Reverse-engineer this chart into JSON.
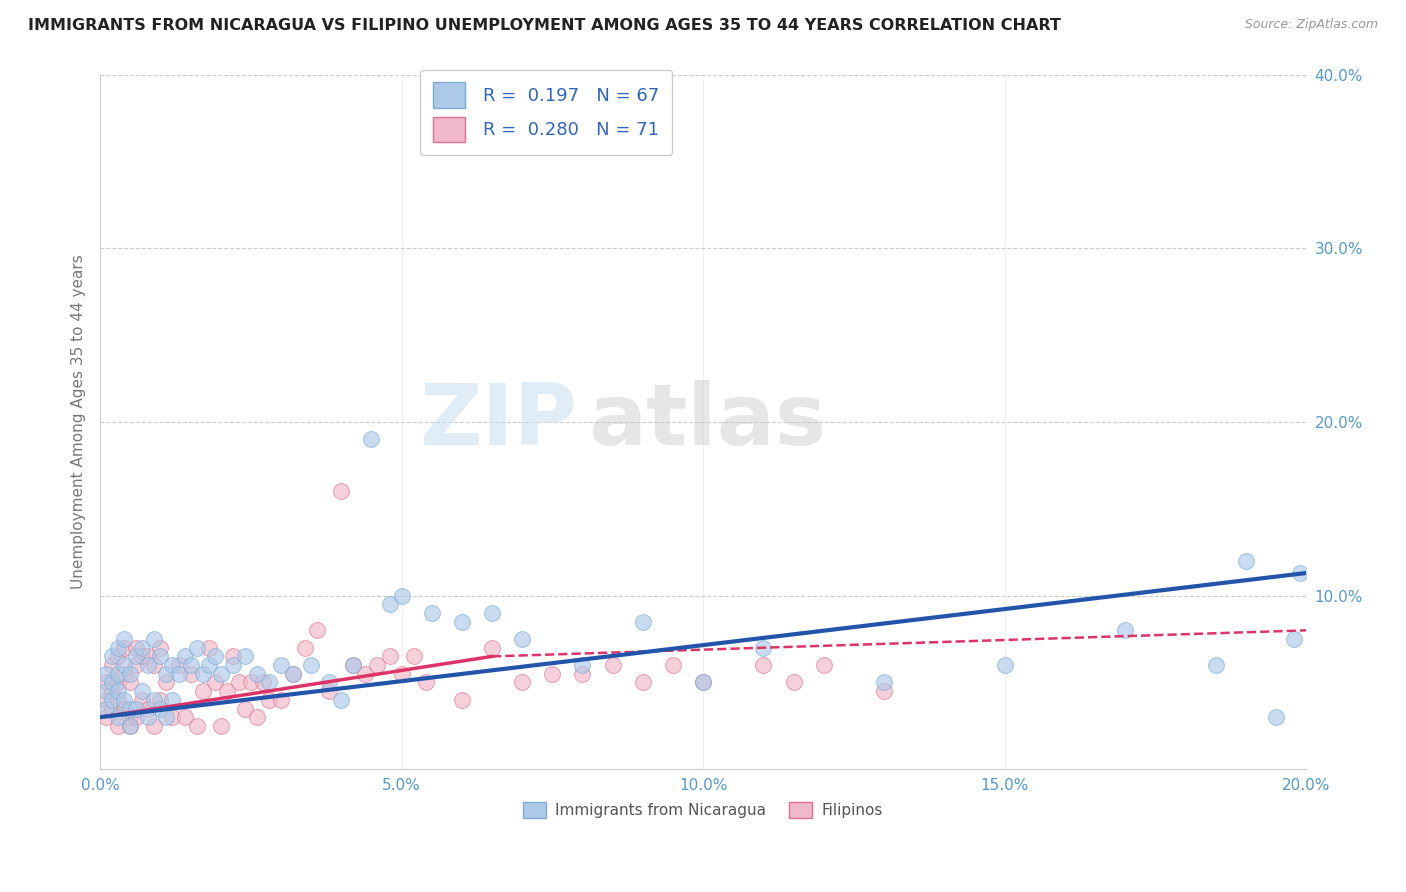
{
  "title": "IMMIGRANTS FROM NICARAGUA VS FILIPINO UNEMPLOYMENT AMONG AGES 35 TO 44 YEARS CORRELATION CHART",
  "source": "Source: ZipAtlas.com",
  "ylabel": "Unemployment Among Ages 35 to 44 years",
  "xlim": [
    0.0,
    0.2
  ],
  "ylim": [
    0.0,
    0.4
  ],
  "xticks": [
    0.0,
    0.05,
    0.1,
    0.15,
    0.2
  ],
  "yticks": [
    0.0,
    0.1,
    0.2,
    0.3,
    0.4
  ],
  "xtick_labels": [
    "0.0%",
    "5.0%",
    "10.0%",
    "15.0%",
    "20.0%"
  ],
  "ytick_labels": [
    "",
    "10.0%",
    "20.0%",
    "30.0%",
    "40.0%"
  ],
  "watermark_zip": "ZIP",
  "watermark_atlas": "atlas",
  "watermark_color_zip": "#c8ddf0",
  "watermark_color_atlas": "#c8c8c8",
  "series": [
    {
      "name": "Immigrants from Nicaragua",
      "R": 0.197,
      "N": 67,
      "color": "#adc9e8",
      "edge_color": "#7aaad4",
      "line_color": "#2255aa",
      "line_x_start": 0.0,
      "line_x_end": 0.2,
      "line_y_start": 0.03,
      "line_y_end": 0.113,
      "line_dashed_from": 0.2,
      "x": [
        0.001,
        0.001,
        0.001,
        0.002,
        0.002,
        0.002,
        0.003,
        0.003,
        0.003,
        0.003,
        0.004,
        0.004,
        0.004,
        0.005,
        0.005,
        0.005,
        0.006,
        0.006,
        0.007,
        0.007,
        0.008,
        0.008,
        0.009,
        0.009,
        0.01,
        0.01,
        0.011,
        0.011,
        0.012,
        0.012,
        0.013,
        0.014,
        0.015,
        0.016,
        0.017,
        0.018,
        0.019,
        0.02,
        0.022,
        0.024,
        0.026,
        0.028,
        0.03,
        0.032,
        0.035,
        0.038,
        0.04,
        0.042,
        0.045,
        0.048,
        0.05,
        0.055,
        0.06,
        0.065,
        0.07,
        0.08,
        0.09,
        0.1,
        0.11,
        0.13,
        0.15,
        0.17,
        0.185,
        0.19,
        0.195,
        0.198,
        0.199
      ],
      "y": [
        0.045,
        0.055,
        0.035,
        0.05,
        0.04,
        0.065,
        0.055,
        0.03,
        0.07,
        0.045,
        0.06,
        0.04,
        0.075,
        0.035,
        0.055,
        0.025,
        0.065,
        0.035,
        0.07,
        0.045,
        0.06,
        0.03,
        0.075,
        0.04,
        0.065,
        0.035,
        0.055,
        0.03,
        0.06,
        0.04,
        0.055,
        0.065,
        0.06,
        0.07,
        0.055,
        0.06,
        0.065,
        0.055,
        0.06,
        0.065,
        0.055,
        0.05,
        0.06,
        0.055,
        0.06,
        0.05,
        0.04,
        0.06,
        0.19,
        0.095,
        0.1,
        0.09,
        0.085,
        0.09,
        0.075,
        0.06,
        0.085,
        0.05,
        0.07,
        0.05,
        0.06,
        0.08,
        0.06,
        0.12,
        0.03,
        0.075,
        0.113
      ]
    },
    {
      "name": "Filipinos",
      "R": 0.28,
      "N": 71,
      "color": "#f0b8c8",
      "edge_color": "#e07090",
      "line_color": "#dd3366",
      "line_x_start": 0.0,
      "line_x_end": 0.065,
      "line_y_start": 0.03,
      "line_y_end": 0.065,
      "line_dashed_from": 0.065,
      "line_dashed_to": 0.2,
      "line_dashed_y_end": 0.08,
      "x": [
        0.001,
        0.001,
        0.001,
        0.002,
        0.002,
        0.002,
        0.003,
        0.003,
        0.003,
        0.003,
        0.004,
        0.004,
        0.004,
        0.005,
        0.005,
        0.005,
        0.006,
        0.006,
        0.006,
        0.007,
        0.007,
        0.008,
        0.008,
        0.009,
        0.009,
        0.01,
        0.01,
        0.011,
        0.012,
        0.013,
        0.014,
        0.015,
        0.016,
        0.017,
        0.018,
        0.019,
        0.02,
        0.021,
        0.022,
        0.023,
        0.024,
        0.025,
        0.026,
        0.027,
        0.028,
        0.03,
        0.032,
        0.034,
        0.036,
        0.038,
        0.04,
        0.042,
        0.044,
        0.046,
        0.048,
        0.05,
        0.052,
        0.054,
        0.06,
        0.065,
        0.07,
        0.075,
        0.08,
        0.085,
        0.09,
        0.095,
        0.1,
        0.11,
        0.115,
        0.12,
        0.13
      ],
      "y": [
        0.04,
        0.05,
        0.03,
        0.045,
        0.035,
        0.06,
        0.05,
        0.025,
        0.065,
        0.04,
        0.055,
        0.035,
        0.07,
        0.03,
        0.05,
        0.025,
        0.06,
        0.03,
        0.07,
        0.065,
        0.04,
        0.065,
        0.035,
        0.06,
        0.025,
        0.07,
        0.04,
        0.05,
        0.03,
        0.06,
        0.03,
        0.055,
        0.025,
        0.045,
        0.07,
        0.05,
        0.025,
        0.045,
        0.065,
        0.05,
        0.035,
        0.05,
        0.03,
        0.05,
        0.04,
        0.04,
        0.055,
        0.07,
        0.08,
        0.045,
        0.16,
        0.06,
        0.055,
        0.06,
        0.065,
        0.055,
        0.065,
        0.05,
        0.04,
        0.07,
        0.05,
        0.055,
        0.055,
        0.06,
        0.05,
        0.06,
        0.05,
        0.06,
        0.05,
        0.06,
        0.045
      ]
    }
  ],
  "background_color": "#ffffff",
  "grid_color": "#cccccc",
  "title_color": "#222222",
  "axis_tick_color": "#5599cc"
}
